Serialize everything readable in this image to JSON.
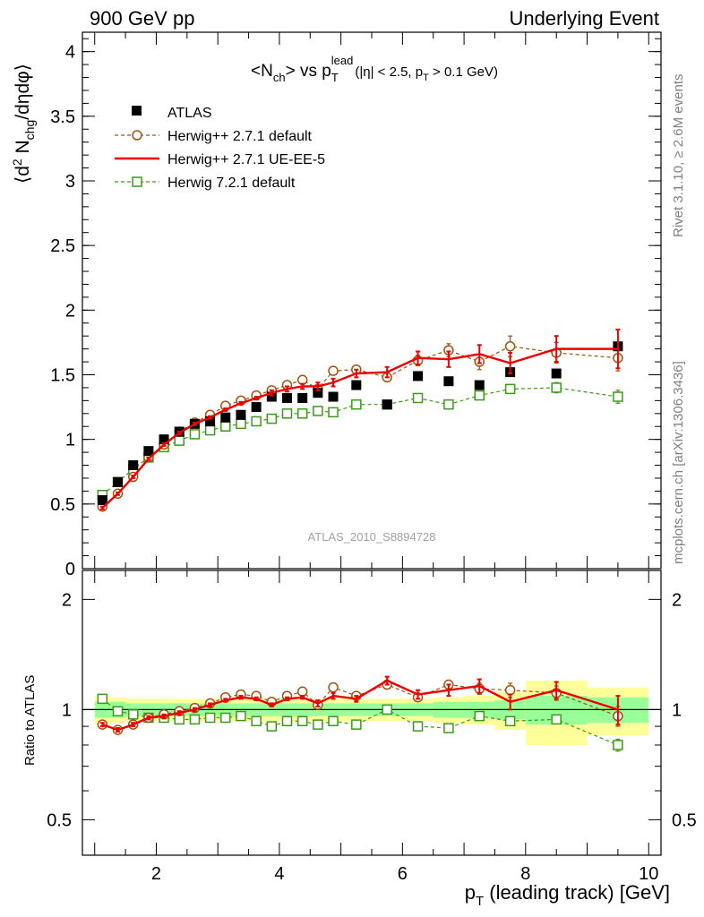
{
  "header": {
    "left": "900 GeV pp",
    "right": "Underlying Event"
  },
  "side_labels": {
    "rivet": "Rivet 3.1.10, ≥ 2.6M events",
    "mcplots": "mcplots.cern.ch [arXiv:1306.3436]"
  },
  "main_title": "<N_ch> vs p_T^lead (|η| < 2.5, p_T > 0.1 GeV)",
  "analysis_id": "ATLAS_2010_S8894728",
  "colors": {
    "data": "#000000",
    "herwig_default": "#a0520e",
    "herwig_ue": "#ee0000",
    "herwig7": "#3c9a1a",
    "band_inner": "#99ff99",
    "band_outer": "#ffff99"
  },
  "chart_data": [
    {
      "type": "scatter",
      "panel": "main",
      "xlabel": "p_T (leading track) [GeV]",
      "ylabel": "⟨d² N_chg/dηdφ⟩",
      "xlim": [
        0.8,
        10.2
      ],
      "ylim": [
        0,
        4.15
      ],
      "x_ticks": [
        2,
        4,
        6,
        8,
        10
      ],
      "y_ticks": [
        0,
        0.5,
        1,
        1.5,
        2,
        2.5,
        3,
        3.5,
        4
      ],
      "legend_position": "top-left",
      "series": [
        {
          "name": "ATLAS",
          "x": [
            1.125,
            1.375,
            1.625,
            1.875,
            2.125,
            2.375,
            2.625,
            2.875,
            3.125,
            3.375,
            3.625,
            3.875,
            4.125,
            4.375,
            4.625,
            4.875,
            5.25,
            5.75,
            6.25,
            6.75,
            7.25,
            7.75,
            8.5,
            9.5
          ],
          "y": [
            0.53,
            0.67,
            0.8,
            0.91,
            1.0,
            1.06,
            1.12,
            1.14,
            1.17,
            1.19,
            1.25,
            1.33,
            1.32,
            1.32,
            1.36,
            1.33,
            1.42,
            1.27,
            1.49,
            1.45,
            1.42,
            1.52,
            1.51,
            1.72
          ]
        },
        {
          "name": "Herwig++ 2.7.1 default",
          "x": [
            1.125,
            1.375,
            1.625,
            1.875,
            2.125,
            2.375,
            2.625,
            2.875,
            3.125,
            3.375,
            3.625,
            3.875,
            4.125,
            4.375,
            4.625,
            4.875,
            5.25,
            5.75,
            6.25,
            6.75,
            7.25,
            7.75,
            8.5,
            9.5
          ],
          "y": [
            0.48,
            0.58,
            0.71,
            0.86,
            0.96,
            1.06,
            1.13,
            1.19,
            1.26,
            1.3,
            1.34,
            1.38,
            1.42,
            1.46,
            1.39,
            1.53,
            1.54,
            1.48,
            1.61,
            1.69,
            1.6,
            1.72,
            1.67,
            1.63
          ],
          "err": [
            0.01,
            0.01,
            0.01,
            0.01,
            0.01,
            0.01,
            0.01,
            0.01,
            0.01,
            0.01,
            0.01,
            0.01,
            0.01,
            0.02,
            0.02,
            0.02,
            0.02,
            0.03,
            0.04,
            0.05,
            0.06,
            0.08,
            0.08,
            0.1
          ]
        },
        {
          "name": "Herwig++ 2.7.1 UE-EE-5",
          "x": [
            1.125,
            1.375,
            1.625,
            1.875,
            2.125,
            2.375,
            2.625,
            2.875,
            3.125,
            3.375,
            3.625,
            3.875,
            4.125,
            4.375,
            4.625,
            4.875,
            5.25,
            5.75,
            6.25,
            6.75,
            7.25,
            7.75,
            8.5,
            9.5
          ],
          "y": [
            0.47,
            0.58,
            0.71,
            0.85,
            0.96,
            1.05,
            1.12,
            1.17,
            1.23,
            1.28,
            1.32,
            1.36,
            1.39,
            1.41,
            1.41,
            1.44,
            1.51,
            1.52,
            1.63,
            1.62,
            1.66,
            1.59,
            1.7,
            1.7
          ],
          "err": [
            0.01,
            0.01,
            0.01,
            0.01,
            0.01,
            0.01,
            0.01,
            0.01,
            0.01,
            0.01,
            0.01,
            0.02,
            0.02,
            0.02,
            0.03,
            0.03,
            0.03,
            0.04,
            0.05,
            0.06,
            0.07,
            0.08,
            0.1,
            0.15
          ]
        },
        {
          "name": "Herwig 7.2.1 default",
          "x": [
            1.125,
            1.375,
            1.625,
            1.875,
            2.125,
            2.375,
            2.625,
            2.875,
            3.125,
            3.375,
            3.625,
            3.875,
            4.125,
            4.375,
            4.625,
            4.875,
            5.25,
            5.75,
            6.25,
            6.75,
            7.25,
            7.75,
            8.5,
            9.5
          ],
          "y": [
            0.57,
            0.67,
            0.77,
            0.86,
            0.94,
            0.99,
            1.04,
            1.07,
            1.1,
            1.12,
            1.14,
            1.16,
            1.2,
            1.2,
            1.22,
            1.21,
            1.27,
            1.27,
            1.32,
            1.27,
            1.34,
            1.39,
            1.4,
            1.33
          ],
          "err": [
            0.01,
            0.01,
            0.01,
            0.01,
            0.01,
            0.01,
            0.01,
            0.01,
            0.01,
            0.01,
            0.01,
            0.01,
            0.01,
            0.01,
            0.02,
            0.02,
            0.02,
            0.02,
            0.02,
            0.03,
            0.03,
            0.03,
            0.04,
            0.05
          ]
        }
      ]
    },
    {
      "type": "scatter",
      "panel": "ratio",
      "ylabel": "Ratio to ATLAS",
      "xlabel": "p_T (leading track) [GeV]",
      "xlim": [
        0.8,
        10.2
      ],
      "ylim": [
        0.4,
        2.4
      ],
      "x_ticks": [
        2,
        4,
        6,
        8,
        10
      ],
      "y_ticks_left": [
        0.5,
        1,
        2
      ],
      "y_ticks_right": [
        0.5,
        1,
        2
      ],
      "bands": {
        "edges": [
          1.0,
          1.25,
          1.5,
          1.75,
          2.0,
          2.25,
          2.5,
          2.75,
          3.0,
          3.25,
          3.5,
          3.75,
          4.0,
          4.25,
          4.5,
          4.75,
          5.0,
          5.5,
          6.0,
          6.5,
          7.0,
          7.5,
          8.0,
          9.0,
          10.0
        ],
        "inner_half_width": [
          0.05,
          0.05,
          0.04,
          0.04,
          0.04,
          0.04,
          0.04,
          0.04,
          0.04,
          0.04,
          0.04,
          0.04,
          0.04,
          0.04,
          0.04,
          0.04,
          0.04,
          0.04,
          0.04,
          0.05,
          0.05,
          0.06,
          0.09,
          0.08
        ],
        "outer_half_width": [
          0.09,
          0.08,
          0.07,
          0.07,
          0.07,
          0.07,
          0.07,
          0.07,
          0.07,
          0.07,
          0.07,
          0.07,
          0.07,
          0.07,
          0.07,
          0.07,
          0.07,
          0.07,
          0.07,
          0.08,
          0.09,
          0.12,
          0.2,
          0.15
        ]
      },
      "series": [
        {
          "name": "Herwig++ 2.7.1 default",
          "x": [
            1.125,
            1.375,
            1.625,
            1.875,
            2.125,
            2.375,
            2.625,
            2.875,
            3.125,
            3.375,
            3.625,
            3.875,
            4.125,
            4.375,
            4.625,
            4.875,
            5.25,
            5.75,
            6.25,
            6.75,
            7.25,
            7.75,
            8.5,
            9.5
          ],
          "y": [
            0.91,
            0.88,
            0.91,
            0.95,
            0.97,
            0.99,
            1.01,
            1.04,
            1.08,
            1.1,
            1.09,
            1.05,
            1.09,
            1.12,
            1.03,
            1.15,
            1.09,
            1.17,
            1.08,
            1.17,
            1.14,
            1.13,
            1.11,
            0.96
          ],
          "err": [
            0.01,
            0.01,
            0.01,
            0.01,
            0.01,
            0.01,
            0.01,
            0.01,
            0.01,
            0.01,
            0.01,
            0.01,
            0.01,
            0.01,
            0.01,
            0.02,
            0.02,
            0.02,
            0.02,
            0.03,
            0.04,
            0.05,
            0.05,
            0.06
          ]
        },
        {
          "name": "Herwig++ 2.7.1 UE-EE-5",
          "x": [
            1.125,
            1.375,
            1.625,
            1.875,
            2.125,
            2.375,
            2.625,
            2.875,
            3.125,
            3.375,
            3.625,
            3.875,
            4.125,
            4.375,
            4.625,
            4.875,
            5.25,
            5.75,
            6.25,
            6.75,
            7.25,
            7.75,
            8.5,
            9.5
          ],
          "y": [
            0.91,
            0.88,
            0.91,
            0.95,
            0.96,
            0.98,
            1.0,
            1.03,
            1.06,
            1.08,
            1.07,
            1.03,
            1.07,
            1.08,
            1.04,
            1.09,
            1.07,
            1.2,
            1.1,
            1.13,
            1.16,
            1.05,
            1.13,
            1.0
          ],
          "err": [
            0.01,
            0.01,
            0.01,
            0.01,
            0.01,
            0.01,
            0.01,
            0.01,
            0.01,
            0.01,
            0.01,
            0.01,
            0.01,
            0.01,
            0.02,
            0.02,
            0.02,
            0.03,
            0.03,
            0.04,
            0.05,
            0.05,
            0.06,
            0.09
          ]
        },
        {
          "name": "Herwig 7.2.1 default",
          "x": [
            1.125,
            1.375,
            1.625,
            1.875,
            2.125,
            2.375,
            2.625,
            2.875,
            3.125,
            3.375,
            3.625,
            3.875,
            4.125,
            4.375,
            4.625,
            4.875,
            5.25,
            5.75,
            6.25,
            6.75,
            7.25,
            7.75,
            8.5,
            9.5
          ],
          "y": [
            1.07,
            0.99,
            0.97,
            0.95,
            0.95,
            0.94,
            0.94,
            0.95,
            0.95,
            0.96,
            0.93,
            0.9,
            0.93,
            0.93,
            0.91,
            0.93,
            0.91,
            1.0,
            0.9,
            0.89,
            0.96,
            0.93,
            0.94,
            0.8
          ],
          "err": [
            0.01,
            0.01,
            0.01,
            0.01,
            0.01,
            0.01,
            0.01,
            0.01,
            0.01,
            0.01,
            0.01,
            0.01,
            0.01,
            0.01,
            0.01,
            0.01,
            0.01,
            0.02,
            0.02,
            0.02,
            0.02,
            0.02,
            0.02,
            0.03
          ]
        }
      ]
    }
  ]
}
